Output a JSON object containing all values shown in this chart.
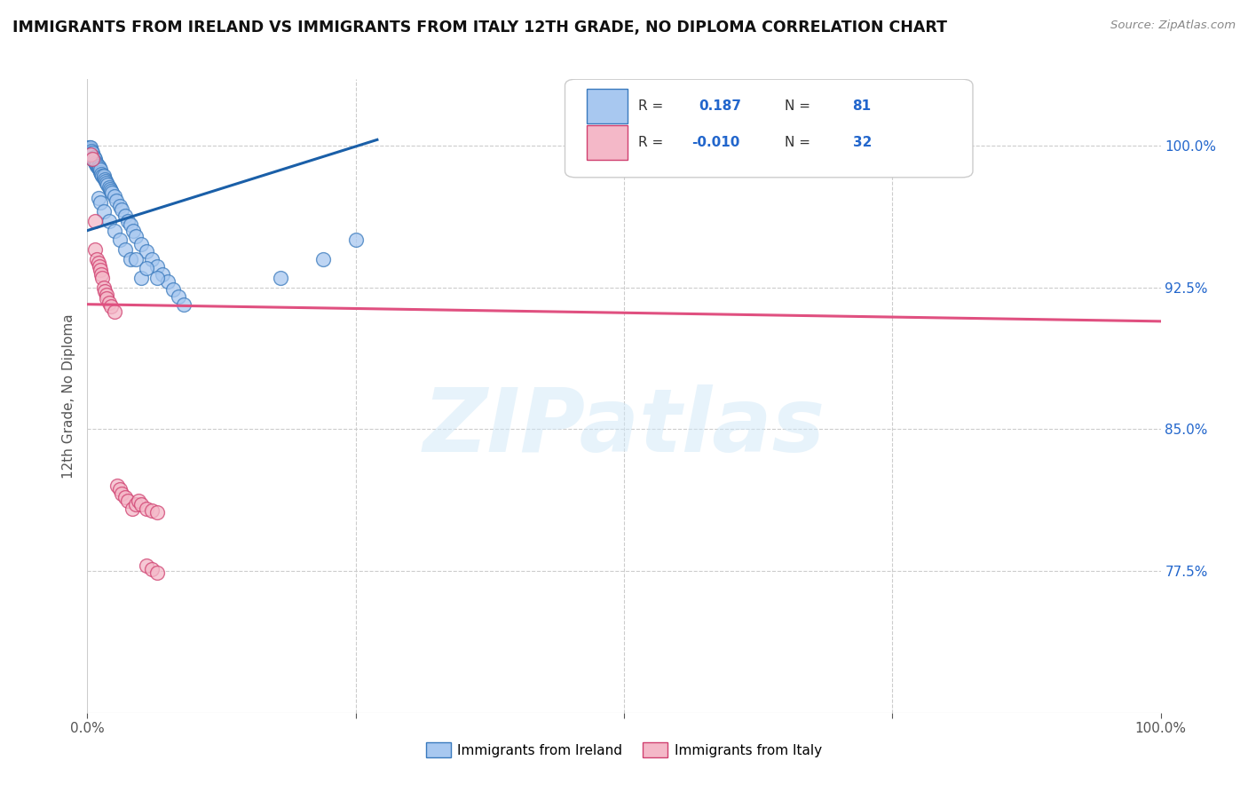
{
  "title": "IMMIGRANTS FROM IRELAND VS IMMIGRANTS FROM ITALY 12TH GRADE, NO DIPLOMA CORRELATION CHART",
  "source_text": "Source: ZipAtlas.com",
  "ylabel": "12th Grade, No Diploma",
  "xlim": [
    0.0,
    1.0
  ],
  "ylim": [
    0.7,
    1.035
  ],
  "y_ticks_right": [
    1.0,
    0.925,
    0.85,
    0.775
  ],
  "y_tick_labels_right": [
    "100.0%",
    "92.5%",
    "85.0%",
    "77.5%"
  ],
  "grid_color": "#cccccc",
  "background_color": "#ffffff",
  "ireland_color": "#a8c8f0",
  "italy_color": "#f4b8c8",
  "ireland_edge_color": "#3a7abd",
  "italy_edge_color": "#d04070",
  "trend_ireland_color": "#1a5fa8",
  "trend_italy_color": "#e05080",
  "R_ireland": 0.187,
  "N_ireland": 81,
  "R_italy": -0.01,
  "N_italy": 32,
  "watermark": "ZIPatlas",
  "legend_label_ireland": "Immigrants from Ireland",
  "legend_label_italy": "Immigrants from Italy",
  "ireland_x": [
    0.001,
    0.001,
    0.001,
    0.002,
    0.002,
    0.002,
    0.002,
    0.003,
    0.003,
    0.003,
    0.003,
    0.003,
    0.004,
    0.004,
    0.004,
    0.004,
    0.005,
    0.005,
    0.005,
    0.005,
    0.006,
    0.006,
    0.006,
    0.007,
    0.007,
    0.007,
    0.008,
    0.008,
    0.009,
    0.009,
    0.01,
    0.01,
    0.011,
    0.011,
    0.012,
    0.012,
    0.013,
    0.014,
    0.015,
    0.015,
    0.016,
    0.017,
    0.018,
    0.019,
    0.02,
    0.021,
    0.022,
    0.023,
    0.025,
    0.027,
    0.03,
    0.032,
    0.035,
    0.038,
    0.04,
    0.043,
    0.045,
    0.05,
    0.055,
    0.06,
    0.065,
    0.07,
    0.075,
    0.08,
    0.085,
    0.09,
    0.01,
    0.012,
    0.015,
    0.02,
    0.025,
    0.03,
    0.035,
    0.04,
    0.05,
    0.18,
    0.22,
    0.25,
    0.045,
    0.055,
    0.065
  ],
  "ireland_y": [
    0.997,
    0.998,
    0.999,
    0.996,
    0.997,
    0.998,
    0.999,
    0.995,
    0.996,
    0.997,
    0.998,
    0.999,
    0.994,
    0.995,
    0.996,
    0.997,
    0.993,
    0.994,
    0.995,
    0.996,
    0.992,
    0.993,
    0.994,
    0.991,
    0.992,
    0.993,
    0.99,
    0.991,
    0.989,
    0.99,
    0.988,
    0.989,
    0.987,
    0.988,
    0.986,
    0.987,
    0.985,
    0.984,
    0.983,
    0.984,
    0.982,
    0.981,
    0.98,
    0.979,
    0.978,
    0.977,
    0.976,
    0.975,
    0.973,
    0.971,
    0.968,
    0.966,
    0.963,
    0.96,
    0.958,
    0.955,
    0.952,
    0.948,
    0.944,
    0.94,
    0.936,
    0.932,
    0.928,
    0.924,
    0.92,
    0.916,
    0.972,
    0.97,
    0.965,
    0.96,
    0.955,
    0.95,
    0.945,
    0.94,
    0.93,
    0.93,
    0.94,
    0.95,
    0.94,
    0.935,
    0.93
  ],
  "italy_x": [
    0.003,
    0.005,
    0.007,
    0.007,
    0.009,
    0.01,
    0.011,
    0.012,
    0.013,
    0.014,
    0.015,
    0.016,
    0.018,
    0.018,
    0.02,
    0.022,
    0.025,
    0.028,
    0.03,
    0.032,
    0.035,
    0.038,
    0.042,
    0.045,
    0.048,
    0.05,
    0.055,
    0.06,
    0.065,
    0.055,
    0.06,
    0.065
  ],
  "italy_y": [
    0.995,
    0.993,
    0.96,
    0.945,
    0.94,
    0.938,
    0.936,
    0.934,
    0.932,
    0.93,
    0.925,
    0.923,
    0.921,
    0.919,
    0.917,
    0.915,
    0.912,
    0.82,
    0.818,
    0.816,
    0.814,
    0.812,
    0.808,
    0.81,
    0.812,
    0.81,
    0.808,
    0.807,
    0.806,
    0.778,
    0.776,
    0.774
  ],
  "trend_ire_x0": 0.0,
  "trend_ire_x1": 0.27,
  "trend_ire_y0": 0.955,
  "trend_ire_y1": 1.003,
  "trend_ita_x0": 0.0,
  "trend_ita_x1": 1.0,
  "trend_ita_y0": 0.916,
  "trend_ita_y1": 0.907
}
